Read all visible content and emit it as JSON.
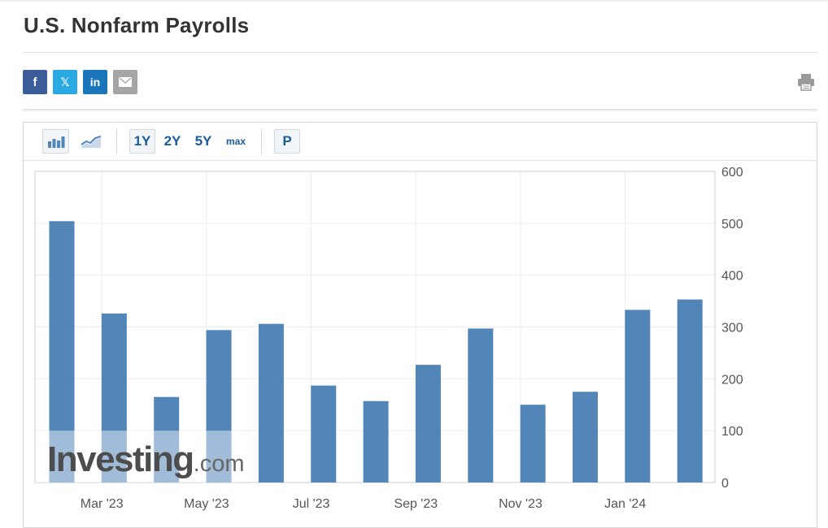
{
  "page": {
    "title": "U.S. Nonfarm Payrolls"
  },
  "share": {
    "facebook_glyph": "f",
    "twitter_glyph": "𝕏",
    "linkedin_glyph": "in",
    "icons": [
      "facebook-icon",
      "x-twitter-icon",
      "linkedin-icon",
      "email-icon"
    ]
  },
  "toolbar": {
    "bar_chart_icon": "bar-chart-icon",
    "line_chart_icon": "line-chart-icon",
    "ranges": [
      "1Y",
      "2Y",
      "5Y",
      "max"
    ],
    "active_range": "1Y",
    "p_label": "P"
  },
  "watermark": {
    "brand": "Investing",
    "suffix": ".com"
  },
  "colors": {
    "bar": "#5286b8",
    "grid": "#ececec",
    "watermark_brand": "#4d4d4d",
    "watermark_suffix": "#666666"
  },
  "chart_data": {
    "type": "bar",
    "series": [
      {
        "values": [
          504,
          326,
          165,
          294,
          306,
          187,
          157,
          227,
          297,
          150,
          175,
          333,
          353
        ]
      }
    ],
    "x_tick_labels": [
      "Mar '23",
      "May '23",
      "Jul '23",
      "Sep '23",
      "Nov '23",
      "Jan '24"
    ],
    "x_tick_positions": [
      1,
      3,
      5,
      7,
      9,
      11
    ],
    "y_ticks": [
      0,
      100,
      200,
      300,
      400,
      500,
      600
    ],
    "ylim": [
      0,
      600
    ],
    "y_axis_side": "right",
    "grid": true,
    "legend": "none"
  }
}
